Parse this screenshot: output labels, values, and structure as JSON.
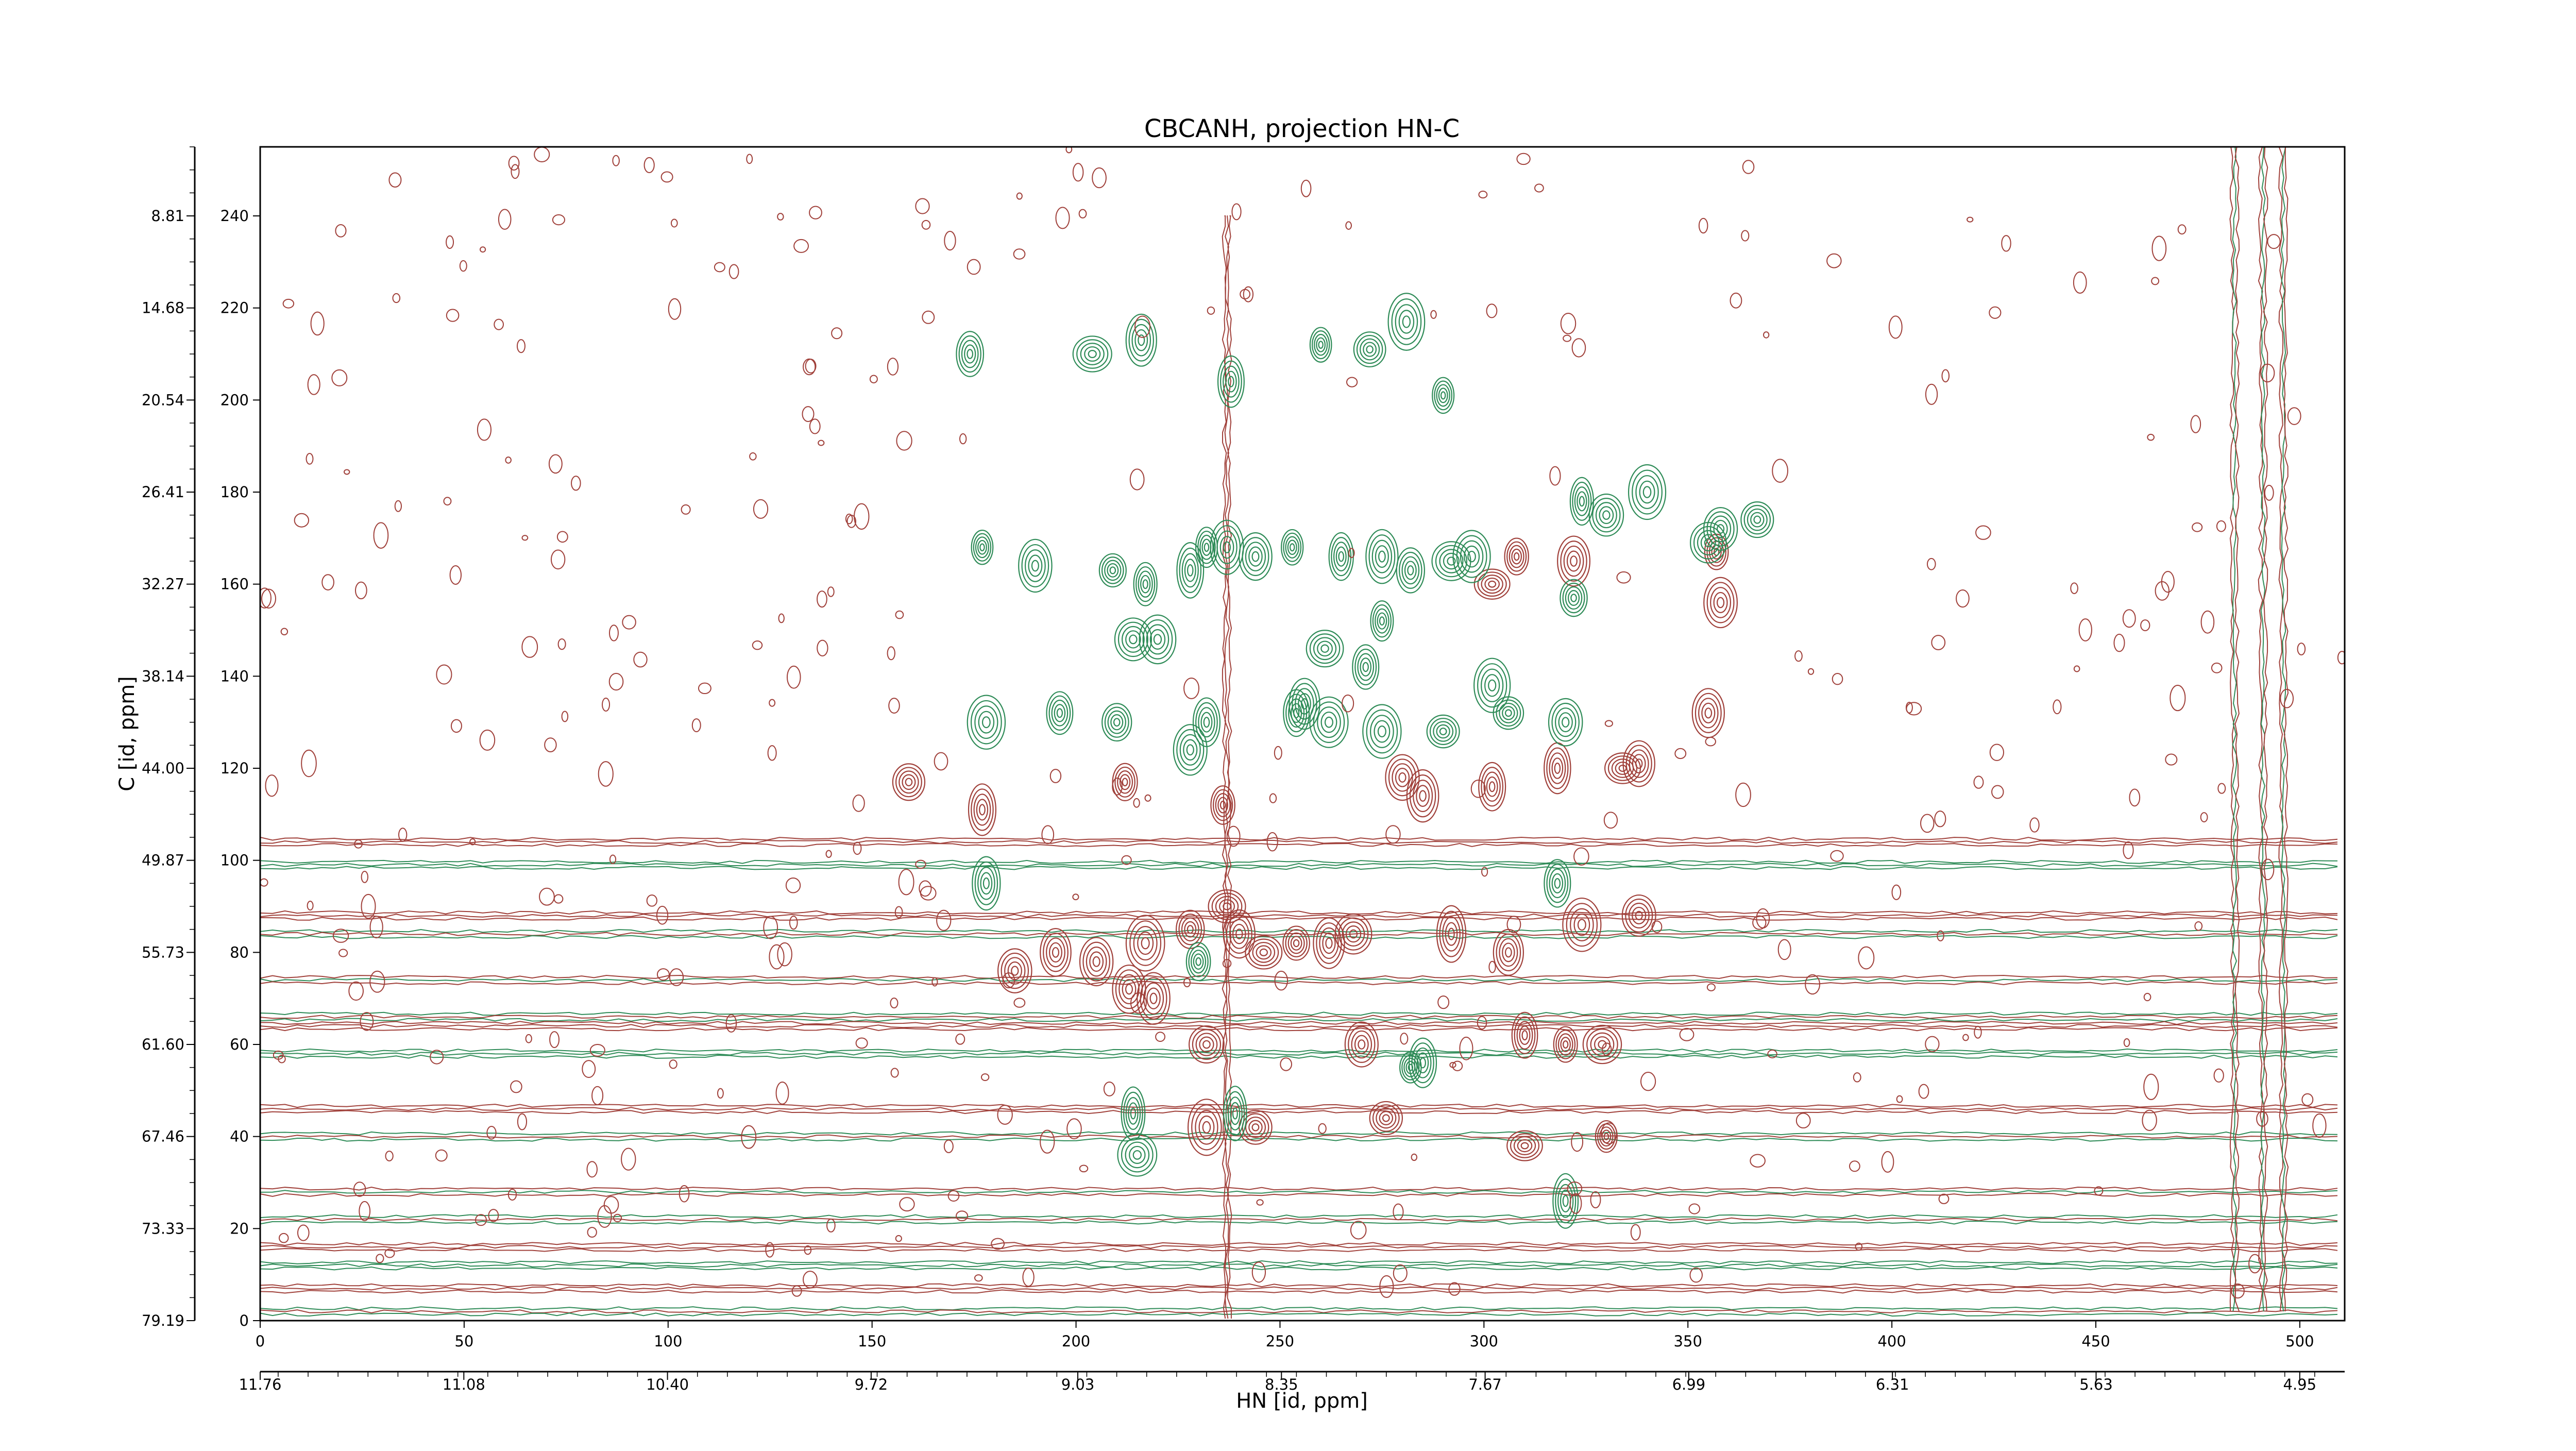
{
  "chart_data": {
    "type": "contour",
    "title": "CBCANH, projection HN-C",
    "xlabel": "HN [id, ppm]",
    "ylabel": "C [id, ppm]",
    "x_index_ticks": [
      "0",
      "50",
      "100",
      "150",
      "200",
      "250",
      "300",
      "350",
      "400",
      "450",
      "500"
    ],
    "x_index_tick_values": [
      0,
      50,
      100,
      150,
      200,
      250,
      300,
      350,
      400,
      450,
      500
    ],
    "x_index_range": [
      0,
      511
    ],
    "x_ppm_ticks": [
      "11.76",
      "11.08",
      "10.40",
      "9.72",
      "9.03",
      "8.35",
      "7.67",
      "6.99",
      "6.31",
      "5.63",
      "4.95"
    ],
    "x_ppm_range": [
      11.76,
      4.8
    ],
    "y_index_ticks": [
      "0",
      "20",
      "40",
      "60",
      "80",
      "100",
      "120",
      "140",
      "160",
      "180",
      "200",
      "220",
      "240"
    ],
    "y_index_tick_values": [
      0,
      20,
      40,
      60,
      80,
      100,
      120,
      140,
      160,
      180,
      200,
      220,
      240
    ],
    "y_index_range": [
      0,
      255
    ],
    "y_ppm_ticks": [
      "8.81",
      "14.68",
      "20.54",
      "26.41",
      "32.27",
      "38.14",
      "44.00",
      "49.87",
      "55.73",
      "61.60",
      "67.46",
      "73.33",
      "79.19"
    ],
    "y_ppm_tick_values": [
      240,
      220,
      200,
      180,
      160,
      140,
      120,
      100,
      80,
      60,
      40,
      20,
      0
    ],
    "series": [
      {
        "color": "#a0403a",
        "sign": "positive",
        "peaks": [
          [
            159,
            117
          ],
          [
            177,
            111
          ],
          [
            185,
            76
          ],
          [
            195,
            80
          ],
          [
            205,
            78
          ],
          [
            212,
            117
          ],
          [
            217,
            82
          ],
          [
            228,
            85
          ],
          [
            232,
            60
          ],
          [
            236,
            112
          ],
          [
            237,
            90
          ],
          [
            240,
            84
          ],
          [
            246,
            80
          ],
          [
            254,
            82
          ],
          [
            262,
            82
          ],
          [
            268,
            84
          ],
          [
            270,
            60
          ],
          [
            280,
            118
          ],
          [
            285,
            114
          ],
          [
            292,
            84
          ],
          [
            302,
            116
          ],
          [
            306,
            80
          ],
          [
            310,
            62
          ],
          [
            318,
            120
          ],
          [
            320,
            60
          ],
          [
            324,
            86
          ],
          [
            329,
            60
          ],
          [
            334,
            120
          ],
          [
            338,
            88
          ],
          [
            213,
            72
          ],
          [
            219,
            70
          ],
          [
            244,
            42
          ],
          [
            232,
            42
          ],
          [
            276,
            44
          ],
          [
            310,
            38
          ],
          [
            330,
            40
          ],
          [
            302,
            160
          ],
          [
            308,
            166
          ],
          [
            322,
            165
          ],
          [
            355,
            132
          ],
          [
            358,
            156
          ],
          [
            357,
            167
          ],
          [
            338,
            121
          ]
        ]
      },
      {
        "color": "#2e8b57",
        "sign": "negative",
        "peaks": [
          [
            174,
            210
          ],
          [
            177,
            168
          ],
          [
            190,
            164
          ],
          [
            178,
            95
          ],
          [
            204,
            210
          ],
          [
            209,
            163
          ],
          [
            216,
            213
          ],
          [
            220,
            148
          ],
          [
            217,
            160
          ],
          [
            228,
            163
          ],
          [
            232,
            168
          ],
          [
            238,
            204
          ],
          [
            237,
            168
          ],
          [
            244,
            166
          ],
          [
            253,
            168
          ],
          [
            265,
            166
          ],
          [
            275,
            166
          ],
          [
            282,
            163
          ],
          [
            292,
            165
          ],
          [
            297,
            166
          ],
          [
            290,
            201
          ],
          [
            260,
            212
          ],
          [
            272,
            211
          ],
          [
            281,
            217
          ],
          [
            275,
            152
          ],
          [
            256,
            134
          ],
          [
            262,
            130
          ],
          [
            290,
            128
          ],
          [
            302,
            138
          ],
          [
            306,
            132
          ],
          [
            320,
            130
          ],
          [
            324,
            178
          ],
          [
            330,
            175
          ],
          [
            322,
            157
          ],
          [
            340,
            180
          ],
          [
            355,
            169
          ],
          [
            358,
            172
          ],
          [
            367,
            174
          ],
          [
            196,
            132
          ],
          [
            214,
            148
          ],
          [
            210,
            130
          ],
          [
            228,
            124
          ],
          [
            254,
            132
          ],
          [
            275,
            128
          ],
          [
            282,
            55
          ],
          [
            214,
            45
          ],
          [
            215,
            36
          ],
          [
            239,
            45
          ],
          [
            285,
            56
          ],
          [
            318,
            95
          ],
          [
            320,
            26
          ],
          [
            178,
            130
          ],
          [
            232,
            130
          ],
          [
            230,
            78
          ],
          [
            261,
            146
          ],
          [
            271,
            142
          ]
        ]
      }
    ],
    "baseline_ridges_y": [
      104,
      99,
      88,
      84,
      74,
      66,
      64,
      58,
      46,
      40,
      28,
      22,
      16,
      12,
      7,
      2
    ],
    "vertical_ridges_x": [
      237,
      484,
      491,
      496
    ]
  }
}
